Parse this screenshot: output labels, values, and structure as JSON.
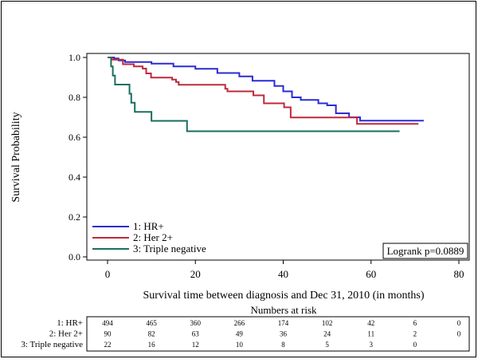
{
  "chart_data": {
    "type": "line",
    "subtype": "kaplan-meier step",
    "xlabel": "Survival time between diagnosis and Dec 31, 2010 (in months)",
    "ylabel": "Survival Probability",
    "xlim": [
      0,
      80
    ],
    "ylim": [
      0,
      1
    ],
    "xticks": [
      "0",
      "20",
      "40",
      "60",
      "80"
    ],
    "yticks": [
      "0.0",
      "0.2",
      "0.4",
      "0.6",
      "0.8",
      "1.0"
    ],
    "legend_position": "bottom-left",
    "annotation": "Logrank p=0.0889",
    "series": [
      {
        "name": "1: HR+",
        "color": "#2b2bd6",
        "points": [
          [
            0,
            1.0
          ],
          [
            1.5,
            0.995
          ],
          [
            2.5,
            0.985
          ],
          [
            4,
            0.977
          ],
          [
            10,
            0.969
          ],
          [
            15,
            0.955
          ],
          [
            20,
            0.943
          ],
          [
            25,
            0.922
          ],
          [
            30,
            0.905
          ],
          [
            33,
            0.883
          ],
          [
            38,
            0.857
          ],
          [
            40,
            0.83
          ],
          [
            42,
            0.8
          ],
          [
            44,
            0.787
          ],
          [
            48,
            0.77
          ],
          [
            50,
            0.76
          ],
          [
            52,
            0.72
          ],
          [
            55,
            0.7
          ],
          [
            57.5,
            0.683
          ],
          [
            72,
            0.683
          ]
        ]
      },
      {
        "name": "2: Her 2+",
        "color": "#c0283c",
        "points": [
          [
            0,
            1.0
          ],
          [
            1,
            0.989
          ],
          [
            3.5,
            0.966
          ],
          [
            6,
            0.955
          ],
          [
            8,
            0.944
          ],
          [
            8.8,
            0.92
          ],
          [
            9.9,
            0.899
          ],
          [
            14.7,
            0.889
          ],
          [
            15.6,
            0.877
          ],
          [
            16.2,
            0.863
          ],
          [
            26.8,
            0.843
          ],
          [
            27.3,
            0.83
          ],
          [
            33.2,
            0.81
          ],
          [
            35.6,
            0.77
          ],
          [
            40.2,
            0.75
          ],
          [
            41.7,
            0.699
          ],
          [
            56.8,
            0.667
          ],
          [
            70.8,
            0.667
          ]
        ]
      },
      {
        "name": "3: Triple negative",
        "color": "#1a6e60",
        "points": [
          [
            0,
            1.0
          ],
          [
            0.8,
            0.955
          ],
          [
            1.2,
            0.909
          ],
          [
            1.7,
            0.864
          ],
          [
            5.0,
            0.818
          ],
          [
            5.4,
            0.773
          ],
          [
            6.2,
            0.727
          ],
          [
            10.0,
            0.682
          ],
          [
            18.1,
            0.63
          ],
          [
            66.5,
            0.63
          ]
        ]
      }
    ],
    "risk_table": {
      "title": "Numbers at risk",
      "times": [
        0,
        10,
        20,
        30,
        40,
        50,
        60,
        70,
        80
      ],
      "rows": [
        {
          "label": "1: HR+",
          "values": [
            "494",
            "465",
            "360",
            "266",
            "174",
            "102",
            "42",
            "6",
            "0"
          ]
        },
        {
          "label": "2: Her 2+",
          "values": [
            "90",
            "82",
            "63",
            "49",
            "36",
            "24",
            "11",
            "2",
            "0"
          ]
        },
        {
          "label": "3: Triple negative",
          "values": [
            "22",
            "16",
            "12",
            "10",
            "8",
            "5",
            "3",
            "0",
            ""
          ]
        }
      ]
    }
  }
}
